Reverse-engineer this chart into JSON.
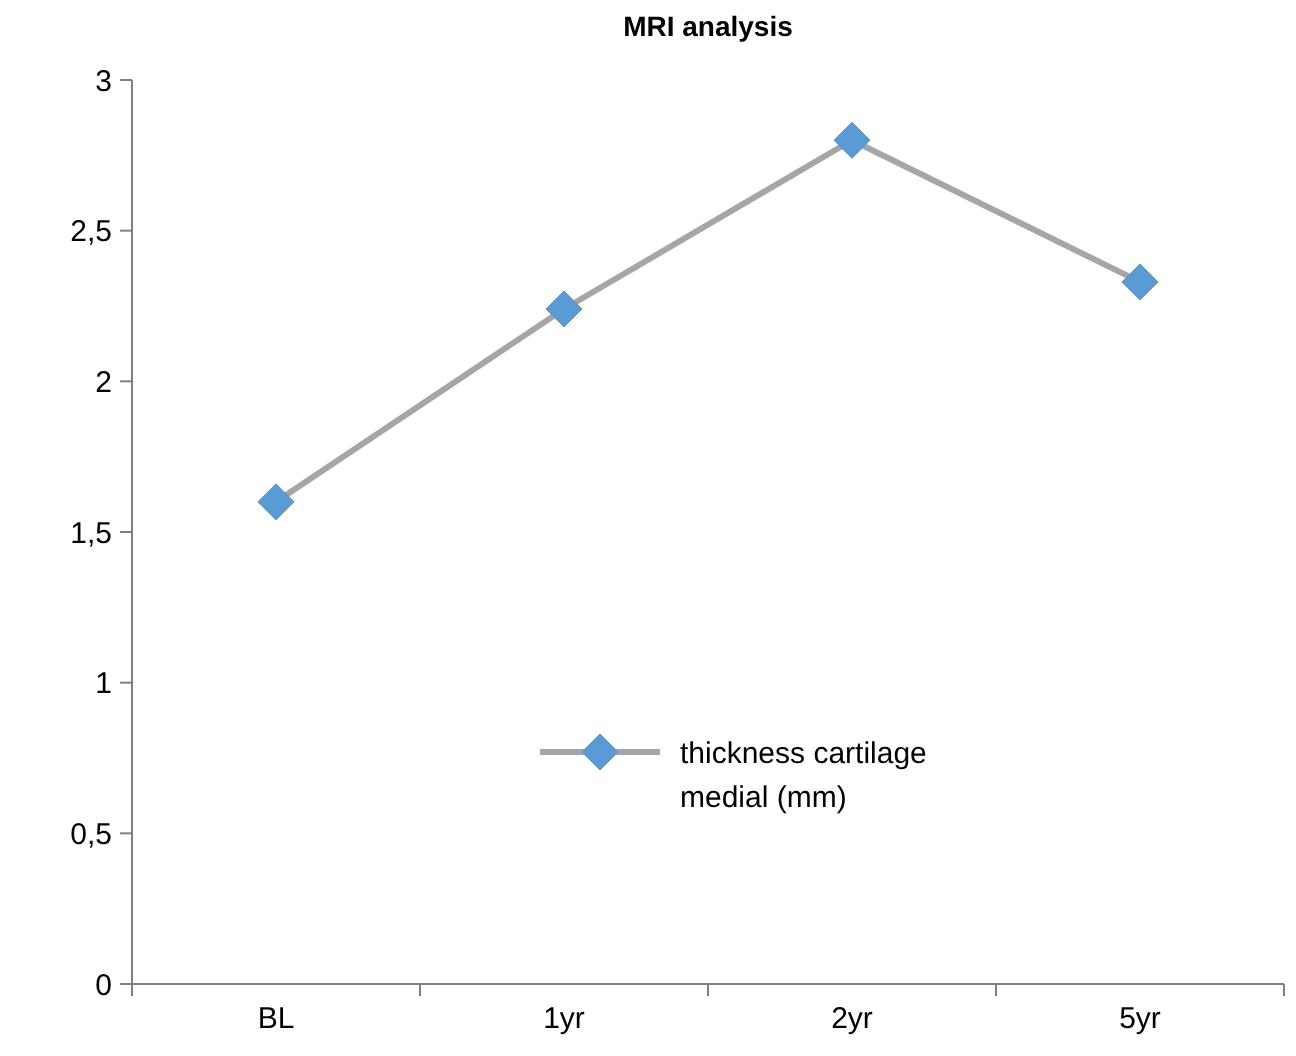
{
  "chart_data": {
    "type": "line",
    "title": "MRI analysis",
    "categories": [
      "BL",
      "1yr",
      "2yr",
      "5yr"
    ],
    "series": [
      {
        "name": "thickness cartilage medial (mm)",
        "color": "#a6a6a6",
        "values": [
          1.6,
          2.24,
          2.8,
          2.33
        ]
      }
    ],
    "ylim": [
      0,
      3
    ],
    "yticks": [
      0,
      {
        "value": 0.5,
        "label": "0,5"
      },
      1,
      {
        "value": 1.5,
        "label": "1,5"
      },
      2,
      {
        "value": 2.5,
        "label": "2,5"
      },
      3
    ],
    "grid": false,
    "legend": "center",
    "marker": "diamond"
  }
}
